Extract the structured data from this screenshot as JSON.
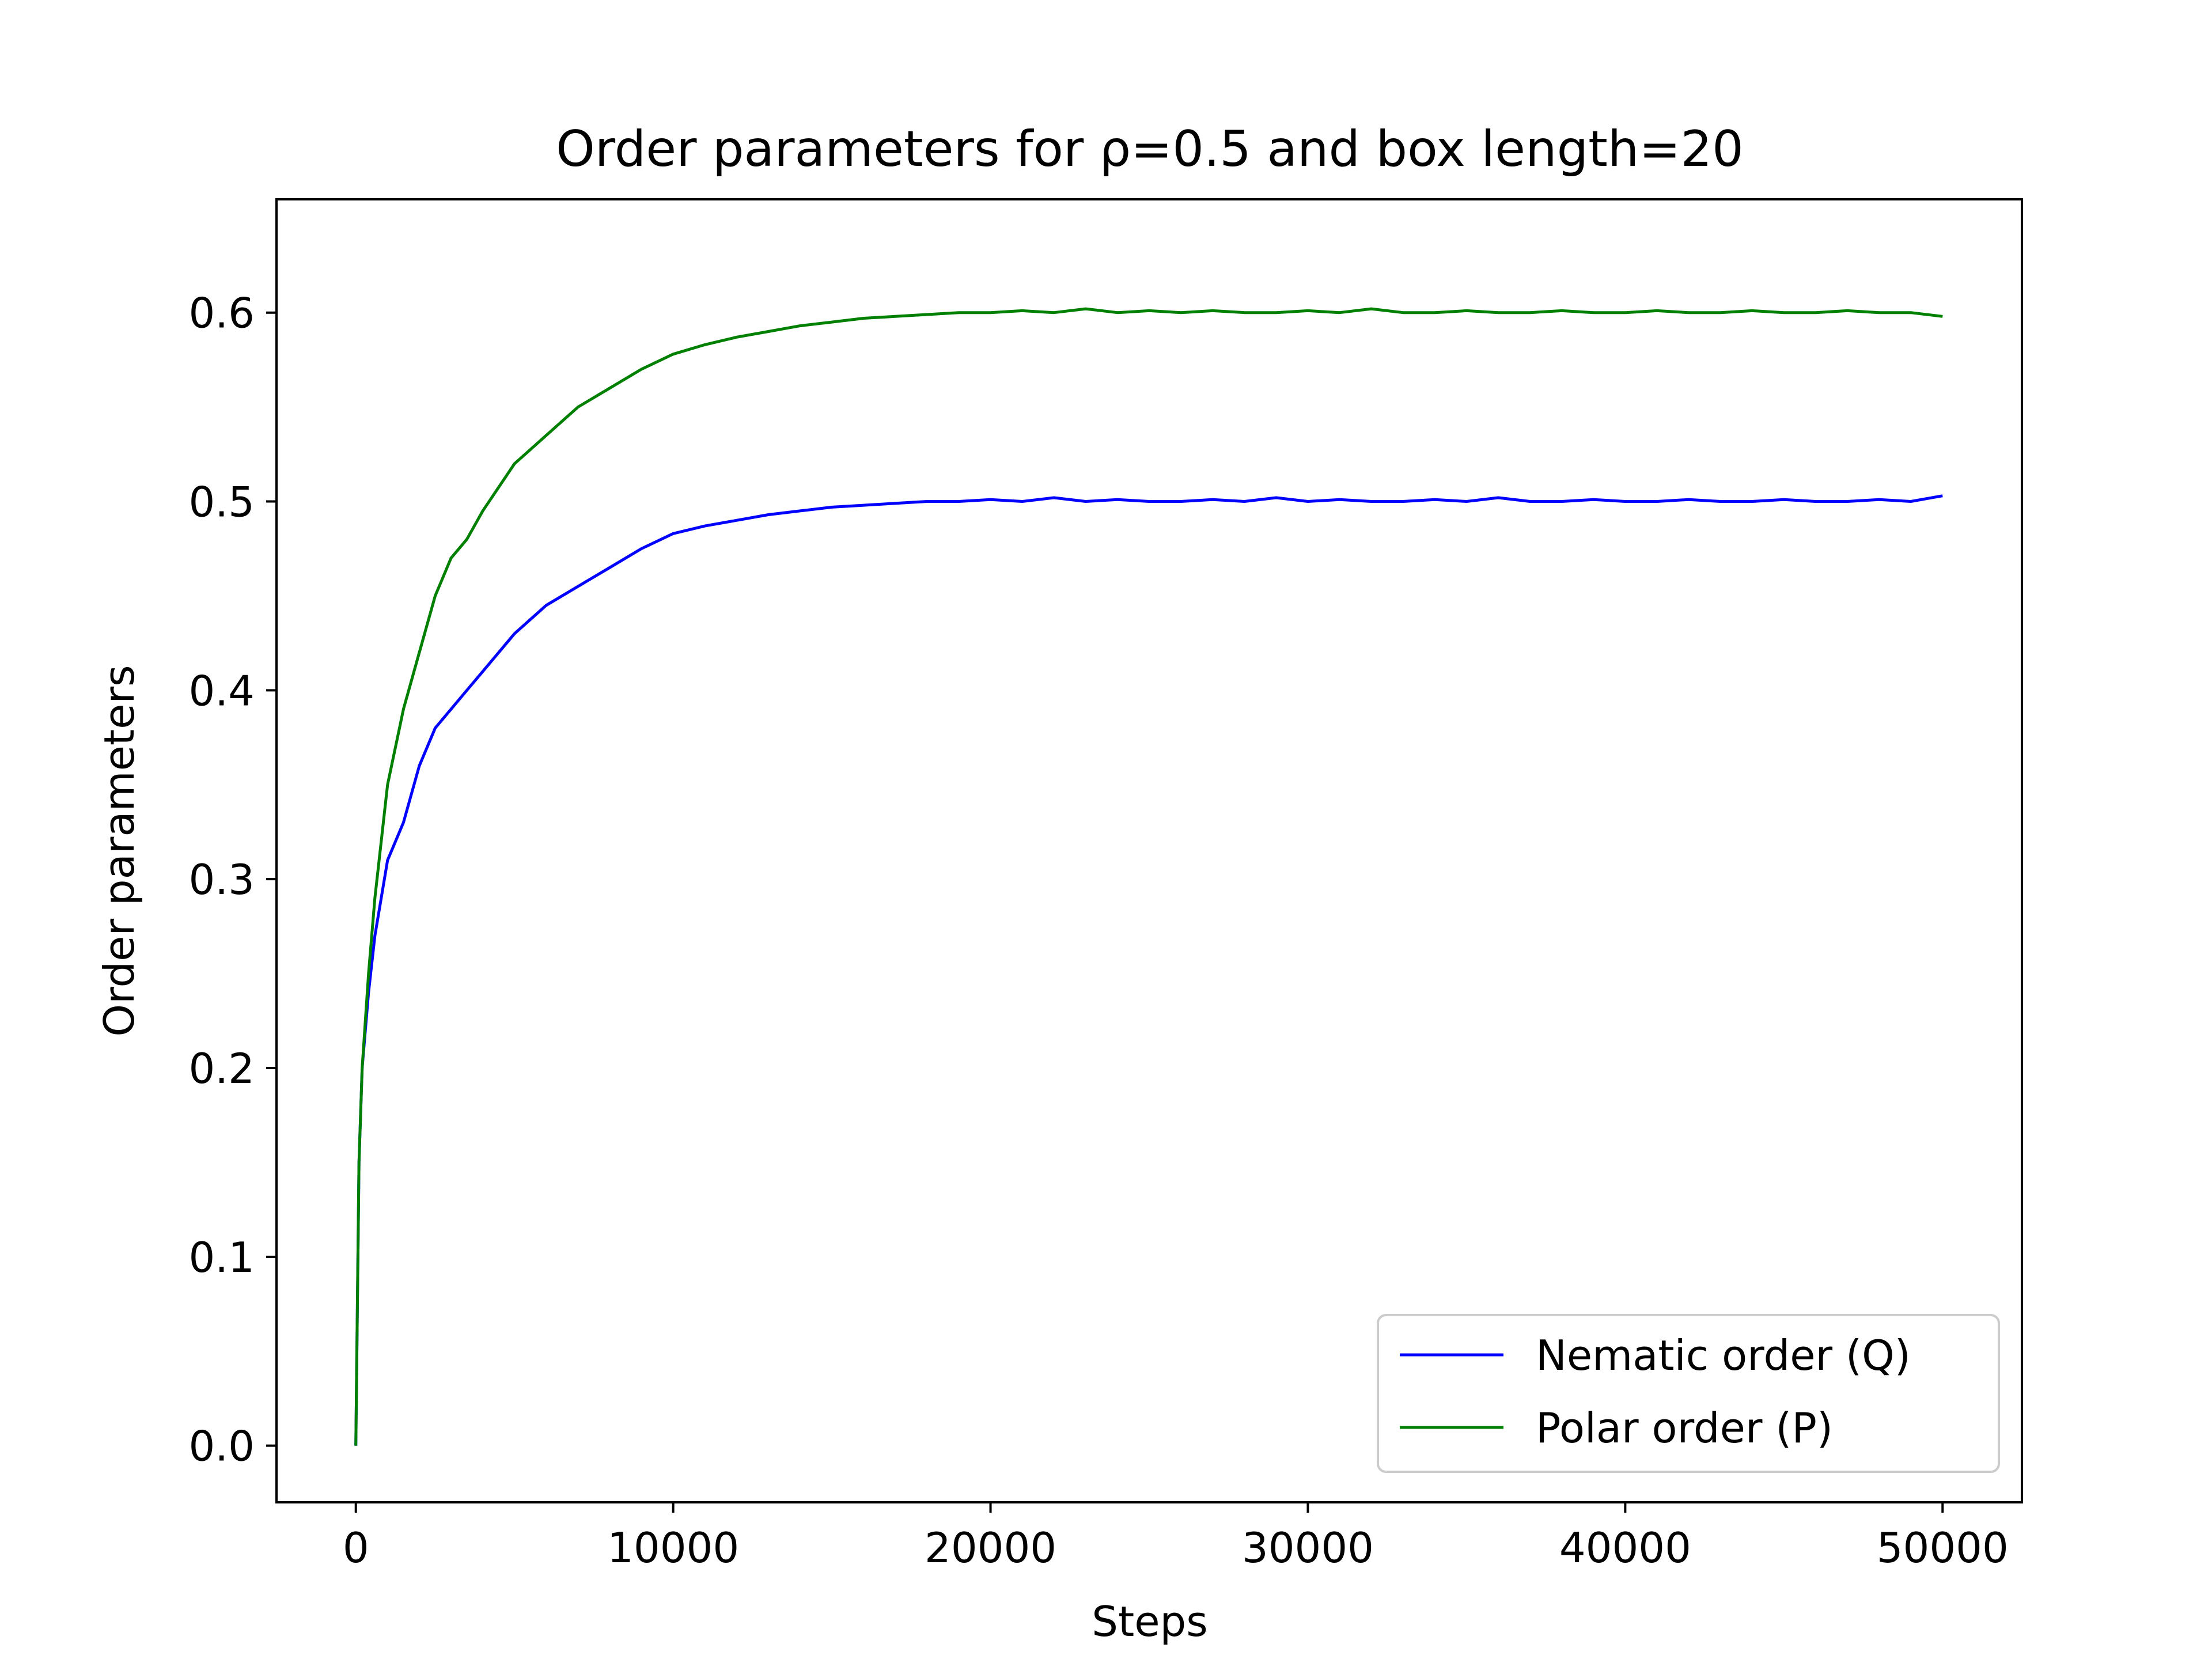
{
  "chart_data": {
    "type": "line",
    "title": "Order parameters for ρ=0.5 and box length=20",
    "xlabel": "Steps",
    "ylabel": "Order parameters",
    "xlim": [
      -2500,
      52500
    ],
    "ylim": [
      -0.03,
      0.66
    ],
    "xticks": [
      0,
      10000,
      20000,
      30000,
      40000,
      50000
    ],
    "xtick_labels": [
      "0",
      "10000",
      "20000",
      "30000",
      "40000",
      "50000"
    ],
    "yticks": [
      0.0,
      0.1,
      0.2,
      0.3,
      0.4,
      0.5,
      0.6
    ],
    "ytick_labels": [
      "0.0",
      "0.1",
      "0.2",
      "0.3",
      "0.4",
      "0.5",
      "0.6"
    ],
    "grid": false,
    "legend_position": "lower-right",
    "x": [
      0,
      100,
      200,
      400,
      600,
      800,
      1000,
      1500,
      2000,
      2500,
      3000,
      3500,
      4000,
      5000,
      6000,
      7000,
      8000,
      9000,
      10000,
      11000,
      12000,
      13000,
      14000,
      15000,
      16000,
      17000,
      18000,
      19000,
      20000,
      21000,
      22000,
      23000,
      24000,
      25000,
      26000,
      27000,
      28000,
      29000,
      30000,
      31000,
      32000,
      33000,
      34000,
      35000,
      36000,
      37000,
      38000,
      39000,
      40000,
      41000,
      42000,
      43000,
      44000,
      45000,
      46000,
      47000,
      48000,
      49000,
      50000
    ],
    "series": [
      {
        "name": "Nematic order (Q)",
        "color": "#0000ff",
        "values": [
          0.0,
          0.15,
          0.2,
          0.24,
          0.27,
          0.29,
          0.31,
          0.33,
          0.36,
          0.38,
          0.39,
          0.4,
          0.41,
          0.43,
          0.445,
          0.455,
          0.465,
          0.475,
          0.483,
          0.487,
          0.49,
          0.493,
          0.495,
          0.497,
          0.498,
          0.499,
          0.5,
          0.5,
          0.501,
          0.5,
          0.502,
          0.5,
          0.501,
          0.5,
          0.5,
          0.501,
          0.5,
          0.502,
          0.5,
          0.501,
          0.5,
          0.5,
          0.501,
          0.5,
          0.502,
          0.5,
          0.5,
          0.501,
          0.5,
          0.5,
          0.501,
          0.5,
          0.5,
          0.501,
          0.5,
          0.5,
          0.501,
          0.5,
          0.503
        ]
      },
      {
        "name": "Polar order (P)",
        "color": "#008000",
        "values": [
          0.0,
          0.15,
          0.2,
          0.25,
          0.29,
          0.32,
          0.35,
          0.39,
          0.42,
          0.45,
          0.47,
          0.48,
          0.495,
          0.52,
          0.535,
          0.55,
          0.56,
          0.57,
          0.578,
          0.583,
          0.587,
          0.59,
          0.593,
          0.595,
          0.597,
          0.598,
          0.599,
          0.6,
          0.6,
          0.601,
          0.6,
          0.602,
          0.6,
          0.601,
          0.6,
          0.601,
          0.6,
          0.6,
          0.601,
          0.6,
          0.602,
          0.6,
          0.6,
          0.601,
          0.6,
          0.6,
          0.601,
          0.6,
          0.6,
          0.601,
          0.6,
          0.6,
          0.601,
          0.6,
          0.6,
          0.601,
          0.6,
          0.6,
          0.598
        ]
      }
    ]
  }
}
